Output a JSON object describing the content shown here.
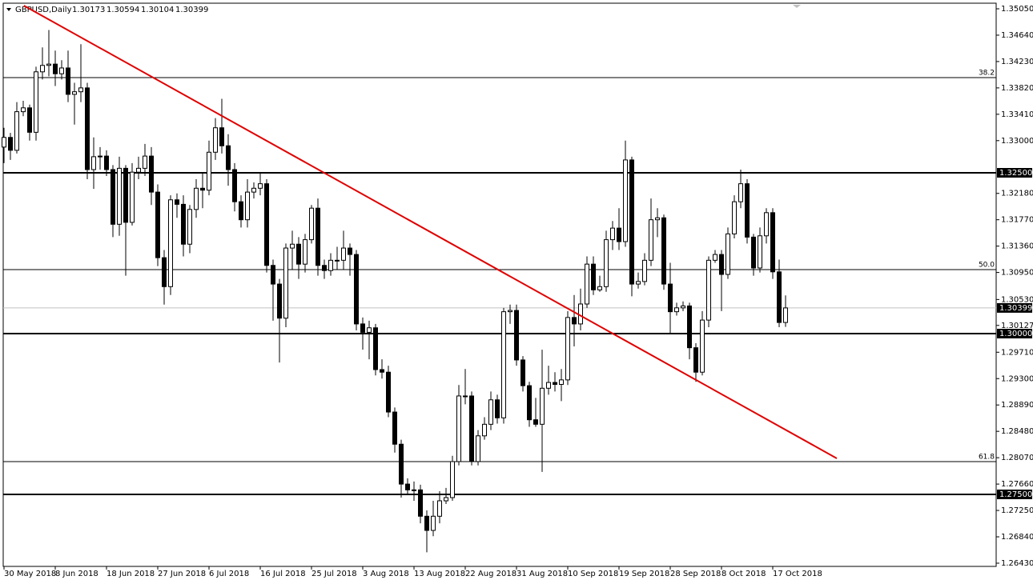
{
  "chart_data": {
    "type": "candlestick",
    "symbol": "GBPUSD,Daily",
    "categories": [
      "30 May 2018",
      null,
      null,
      null,
      null,
      null,
      null,
      null,
      "8 Jun 2018",
      null,
      null,
      null,
      null,
      null,
      null,
      null,
      "18 Jun 2018",
      null,
      null,
      null,
      null,
      null,
      null,
      null,
      "27 Jun 2018",
      null,
      null,
      null,
      null,
      null,
      null,
      null,
      "6 Jul 2018",
      null,
      null,
      null,
      null,
      null,
      null,
      null,
      "16 Jul 2018",
      null,
      null,
      null,
      null,
      null,
      null,
      null,
      "25 Jul 2018",
      null,
      null,
      null,
      null,
      null,
      null,
      null,
      "3 Aug 2018",
      null,
      null,
      null,
      null,
      null,
      null,
      null,
      "13 Aug 2018",
      null,
      null,
      null,
      null,
      null,
      null,
      null,
      "22 Aug 2018",
      null,
      null,
      null,
      null,
      null,
      null,
      null,
      "31 Aug 2018",
      null,
      null,
      null,
      null,
      null,
      null,
      null,
      "10 Sep 2018",
      null,
      null,
      null,
      null,
      null,
      null,
      null,
      "19 Sep 2018",
      null,
      null,
      null,
      null,
      null,
      null,
      null,
      "28 Sep 2018",
      null,
      null,
      null,
      null,
      null,
      null,
      null,
      "8 Oct 2018",
      null,
      null,
      null,
      null,
      null,
      null,
      null,
      "17 Oct 2018",
      null,
      null
    ],
    "open": [
      1.329,
      1.3305,
      1.3285,
      1.3345,
      1.3351,
      1.3313,
      1.3407,
      1.3417,
      1.3419,
      1.3404,
      1.3413,
      1.3372,
      1.3376,
      1.3382,
      1.3255,
      1.3275,
      1.3276,
      1.3255,
      1.317,
      1.3257,
      1.3173,
      1.3251,
      1.3257,
      1.3276,
      1.322,
      1.3118,
      1.3073,
      1.3208,
      1.3201,
      1.3139,
      1.3193,
      1.3226,
      1.3223,
      1.3282,
      1.332,
      1.3292,
      1.3255,
      1.3205,
      1.3177,
      1.322,
      1.3226,
      1.3233,
      1.3106,
      1.3077,
      1.3024,
      1.3133,
      1.3139,
      1.3108,
      1.3146,
      1.3195,
      1.3106,
      1.3098,
      1.3114,
      1.3114,
      1.3133,
      1.3123,
      1.3015,
      1.3002,
      1.3009,
      1.2944,
      1.294,
      1.2878,
      1.2828,
      1.2766,
      1.2757,
      1.2757,
      1.2716,
      1.2694,
      1.2716,
      1.274,
      1.2745,
      1.2801,
      1.2903,
      1.2903,
      1.2801,
      1.2841,
      1.2859,
      1.2897,
      1.2869,
      1.3034,
      1.3036,
      1.2959,
      1.2919,
      1.2866,
      1.2859,
      1.2915,
      1.2924,
      1.2921,
      1.2928,
      1.3025,
      1.3015,
      1.3046,
      1.3108,
      1.3068,
      1.3073,
      1.3146,
      1.3164,
      1.3143,
      1.327,
      1.3077,
      1.3081,
      1.3114,
      1.3177,
      1.318,
      1.3077,
      1.3034,
      1.304,
      1.3043,
      1.2978,
      1.294,
      1.3021,
      1.3114,
      1.3123,
      1.3092,
      1.3155,
      1.3205,
      1.3233,
      1.315,
      1.3102,
      1.3152,
      1.3188,
      1.3096,
      1.30173
    ],
    "high": [
      1.332,
      1.3312,
      1.336,
      1.3362,
      1.3356,
      1.3415,
      1.3445,
      1.3472,
      1.344,
      1.3425,
      1.344,
      1.339,
      1.345,
      1.339,
      1.3305,
      1.329,
      1.3285,
      1.3262,
      1.3275,
      1.3262,
      1.3265,
      1.3275,
      1.3295,
      1.329,
      1.3232,
      1.313,
      1.3215,
      1.3218,
      1.3215,
      1.32,
      1.324,
      1.325,
      1.33,
      1.3335,
      1.3365,
      1.331,
      1.3265,
      1.3215,
      1.324,
      1.3235,
      1.325,
      1.324,
      1.3115,
      1.3085,
      1.314,
      1.316,
      1.315,
      1.3155,
      1.32,
      1.321,
      1.3115,
      1.3125,
      1.3135,
      1.316,
      1.314,
      1.313,
      1.3025,
      1.302,
      1.3015,
      1.296,
      1.295,
      1.2885,
      1.2835,
      1.2775,
      1.277,
      1.2765,
      1.2725,
      1.274,
      1.2755,
      1.276,
      1.281,
      1.292,
      1.2945,
      1.291,
      1.285,
      1.287,
      1.291,
      1.2905,
      1.304,
      1.3045,
      1.3045,
      1.2965,
      1.2925,
      1.29,
      1.2975,
      1.295,
      1.294,
      1.2945,
      1.3035,
      1.306,
      1.307,
      1.312,
      1.312,
      1.309,
      1.316,
      1.3175,
      1.3195,
      1.33,
      1.3275,
      1.3095,
      1.3125,
      1.321,
      1.3195,
      1.3185,
      1.311,
      1.3048,
      1.305,
      1.3048,
      1.2985,
      1.3035,
      1.312,
      1.313,
      1.313,
      1.3165,
      1.3215,
      1.3255,
      1.324,
      1.3155,
      1.3165,
      1.3195,
      1.3195,
      1.3115,
      1.30594
    ],
    "low": [
      1.3265,
      1.327,
      1.328,
      1.3338,
      1.33,
      1.33,
      1.3395,
      1.34,
      1.3385,
      1.3395,
      1.336,
      1.3325,
      1.336,
      1.324,
      1.3225,
      1.3255,
      1.3245,
      1.315,
      1.3152,
      1.309,
      1.3168,
      1.324,
      1.3245,
      1.32,
      1.3105,
      1.3045,
      1.306,
      1.318,
      1.312,
      1.3125,
      1.318,
      1.3195,
      1.3215,
      1.327,
      1.328,
      1.323,
      1.319,
      1.3165,
      1.3165,
      1.321,
      1.3215,
      1.3095,
      1.302,
      1.2955,
      1.301,
      1.31,
      1.3085,
      1.3095,
      1.314,
      1.309,
      1.3085,
      1.309,
      1.31,
      1.31,
      1.309,
      1.3005,
      1.2975,
      1.296,
      1.2935,
      1.293,
      1.287,
      1.2815,
      1.2745,
      1.275,
      1.274,
      1.2705,
      1.266,
      1.2685,
      1.2705,
      1.2735,
      1.274,
      1.2795,
      1.289,
      1.2795,
      1.2795,
      1.2835,
      1.285,
      1.286,
      1.286,
      1.3015,
      1.295,
      1.291,
      1.2855,
      1.2855,
      1.2785,
      1.2905,
      1.291,
      1.2895,
      1.292,
      1.298,
      1.3005,
      1.304,
      1.306,
      1.3065,
      1.3065,
      1.313,
      1.313,
      1.3135,
      1.3058,
      1.307,
      1.3075,
      1.3105,
      1.315,
      1.3068,
      1.3,
      1.3028,
      1.3035,
      1.296,
      1.2925,
      1.2935,
      1.301,
      1.311,
      1.3035,
      1.3085,
      1.3148,
      1.3195,
      1.314,
      1.309,
      1.3095,
      1.314,
      1.3085,
      1.301,
      1.30104
    ],
    "close": [
      1.3305,
      1.3285,
      1.3345,
      1.3351,
      1.3313,
      1.3407,
      1.3417,
      1.3419,
      1.3404,
      1.3413,
      1.3372,
      1.3376,
      1.3382,
      1.3255,
      1.3275,
      1.3276,
      1.3255,
      1.317,
      1.3257,
      1.3173,
      1.3251,
      1.3257,
      1.3276,
      1.322,
      1.3118,
      1.3073,
      1.3208,
      1.3201,
      1.3139,
      1.3193,
      1.3226,
      1.3223,
      1.3282,
      1.332,
      1.3292,
      1.3255,
      1.3205,
      1.3177,
      1.322,
      1.3226,
      1.3233,
      1.3106,
      1.3077,
      1.3024,
      1.3133,
      1.3139,
      1.3108,
      1.3146,
      1.3195,
      1.3106,
      1.3098,
      1.3114,
      1.3114,
      1.3133,
      1.3123,
      1.3015,
      1.3002,
      1.3009,
      1.2944,
      1.294,
      1.2878,
      1.2828,
      1.2766,
      1.2757,
      1.2757,
      1.2716,
      1.2694,
      1.2716,
      1.274,
      1.2745,
      1.2801,
      1.2903,
      1.2903,
      1.2801,
      1.2841,
      1.2859,
      1.2897,
      1.2869,
      1.3034,
      1.3036,
      1.2959,
      1.2919,
      1.2866,
      1.2859,
      1.2915,
      1.2924,
      1.2921,
      1.2928,
      1.3025,
      1.3015,
      1.3046,
      1.3108,
      1.3068,
      1.3073,
      1.3146,
      1.3164,
      1.3143,
      1.327,
      1.3077,
      1.3081,
      1.3114,
      1.3177,
      1.318,
      1.3077,
      1.3034,
      1.304,
      1.3043,
      1.2978,
      1.294,
      1.3021,
      1.3114,
      1.3123,
      1.3092,
      1.3155,
      1.3205,
      1.3233,
      1.315,
      1.3102,
      1.3152,
      1.3188,
      1.3096,
      1.30173,
      1.30399
    ],
    "up_color": "#ffffff",
    "down_color": "#000000",
    "ylim": [
      1.2638,
      1.35137
    ],
    "yticks": [
      {
        "value": 1.3505,
        "label": "1.35050"
      },
      {
        "value": 1.3464,
        "label": "1.34640"
      },
      {
        "value": 1.3423,
        "label": "1.34230"
      },
      {
        "value": 1.3382,
        "label": "1.33820"
      },
      {
        "value": 1.3341,
        "label": "1.33410"
      },
      {
        "value": 1.33,
        "label": "1.33000"
      },
      {
        "value": 1.3218,
        "label": "1.32180"
      },
      {
        "value": 1.3177,
        "label": "1.31770"
      },
      {
        "value": 1.3136,
        "label": "1.31360"
      },
      {
        "value": 1.3095,
        "label": "1.30950"
      },
      {
        "value": 1.3053,
        "label": "1.30530"
      },
      {
        "value": 1.30127,
        "label": "1.30127"
      },
      {
        "value": 1.2971,
        "label": "1.29710"
      },
      {
        "value": 1.293,
        "label": "1.29300"
      },
      {
        "value": 1.2889,
        "label": "1.28890"
      },
      {
        "value": 1.2848,
        "label": "1.28480"
      },
      {
        "value": 1.2807,
        "label": "1.28070"
      },
      {
        "value": 1.2766,
        "label": "1.27660"
      },
      {
        "value": 1.2725,
        "label": "1.27250"
      },
      {
        "value": 1.2684,
        "label": "1.26840"
      },
      {
        "value": 1.2643,
        "label": "1.26430"
      }
    ],
    "levels": [
      {
        "value": 1.325,
        "label": "1.32500"
      },
      {
        "value": 1.3,
        "label": "1.30000"
      },
      {
        "value": 1.275,
        "label": "1.27500"
      }
    ],
    "fib_levels": [
      {
        "value": 1.3398,
        "label": "38.2"
      },
      {
        "value": 1.30995,
        "label": "50.0"
      },
      {
        "value": 1.2801,
        "label": "61.8"
      }
    ],
    "trendline": {
      "x": [
        3.1,
        130
      ],
      "y": [
        1.351,
        1.2806
      ],
      "color": "#e00000"
    }
  }
}
